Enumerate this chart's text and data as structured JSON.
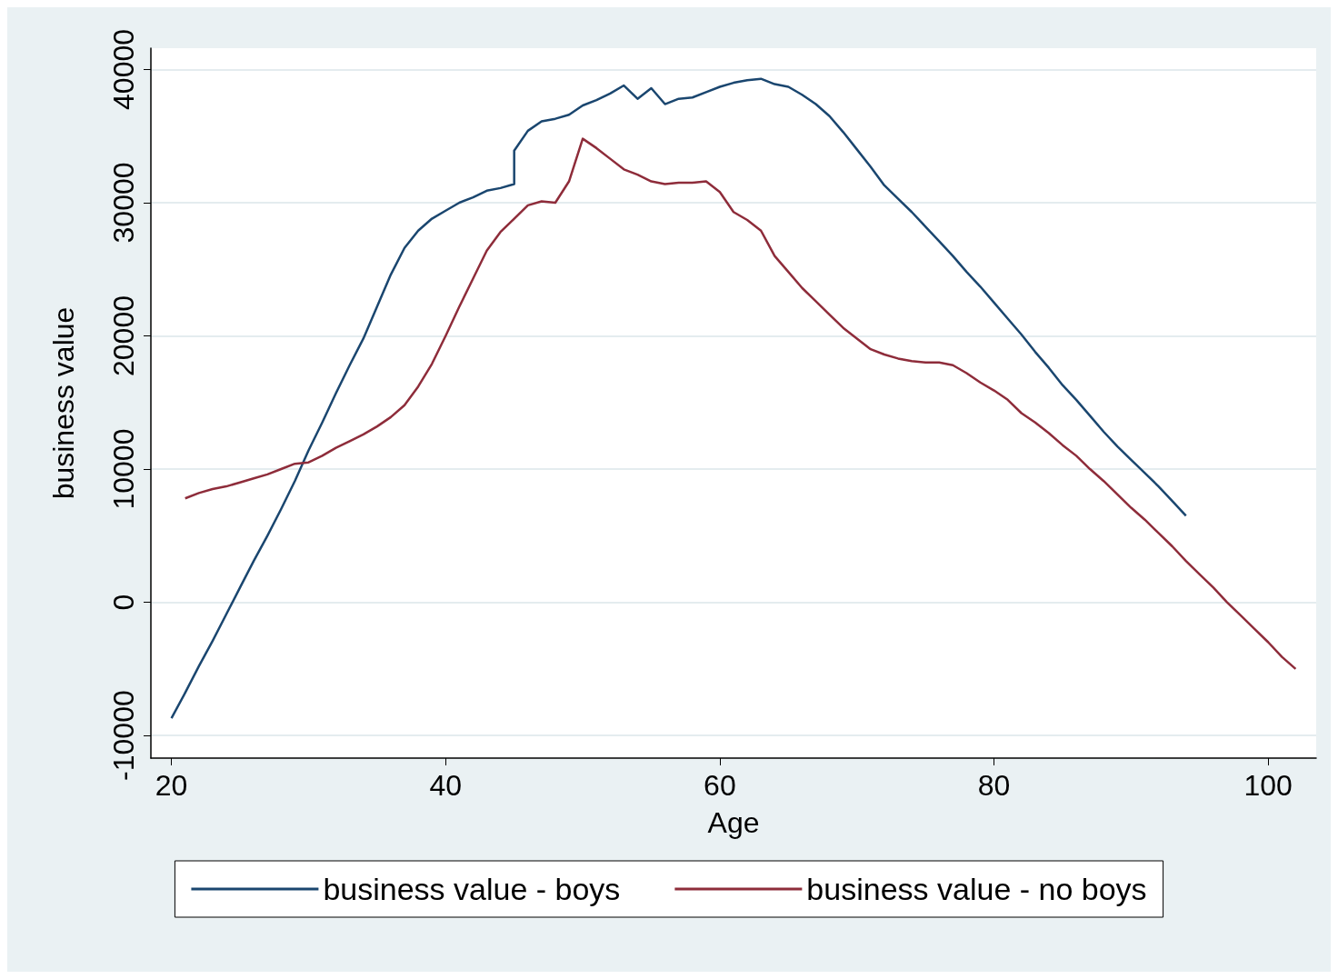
{
  "chart_data": {
    "type": "line",
    "xlabel": "Age",
    "ylabel": "business value",
    "xlim": [
      18.5,
      103.5
    ],
    "xticks": [
      20,
      40,
      60,
      80,
      100
    ],
    "ylim": [
      -11700,
      41600
    ],
    "yticks": [
      -10000,
      0,
      10000,
      20000,
      30000,
      40000
    ],
    "grid": "y",
    "legend": "bottom",
    "series": [
      {
        "name": "business value - boys",
        "color": "#1a466f",
        "x": [
          20,
          21,
          22,
          23,
          24,
          25,
          26,
          27,
          28,
          29,
          30,
          31,
          32,
          33,
          34,
          35,
          36,
          37,
          38,
          39,
          40,
          41,
          42,
          43,
          44,
          45,
          45,
          46,
          47,
          48,
          49,
          50,
          51,
          52,
          53,
          54,
          55,
          56,
          57,
          58,
          59,
          60,
          61,
          62,
          63,
          64,
          65,
          66,
          67,
          68,
          69,
          70,
          71,
          72,
          73,
          74,
          75,
          76,
          77,
          78,
          79,
          80,
          81,
          82,
          83,
          84,
          85,
          86,
          87,
          88,
          89,
          90,
          91,
          92,
          93,
          94
        ],
        "values": [
          -8700,
          -6800,
          -4800,
          -2900,
          -900,
          1100,
          3100,
          5000,
          7000,
          9100,
          11400,
          13500,
          15700,
          17800,
          19800,
          22200,
          24600,
          26600,
          27900,
          28800,
          29400,
          30000,
          30400,
          30900,
          31100,
          31400,
          33900,
          35400,
          36100,
          36300,
          36600,
          37300,
          37700,
          38200,
          38800,
          37800,
          38600,
          37400,
          37800,
          37900,
          38300,
          38700,
          39000,
          39200,
          39300,
          38900,
          38700,
          38100,
          37400,
          36500,
          35300,
          34000,
          32700,
          31300,
          30300,
          29300,
          28200,
          27100,
          26000,
          24800,
          23700,
          22500,
          21300,
          20100,
          18800,
          17600,
          16300,
          15200,
          14000,
          12800,
          11700,
          10700,
          9700,
          8700,
          7600,
          6500
        ]
      },
      {
        "name": "business value - no boys",
        "color": "#8e2c3a",
        "x": [
          21,
          22,
          23,
          24,
          25,
          26,
          27,
          28,
          29,
          30,
          31,
          32,
          33,
          34,
          35,
          36,
          37,
          38,
          39,
          40,
          41,
          42,
          43,
          44,
          45,
          46,
          47,
          48,
          49,
          50,
          51,
          52,
          53,
          54,
          55,
          56,
          57,
          58,
          59,
          60,
          61,
          62,
          63,
          64,
          65,
          66,
          67,
          68,
          69,
          70,
          71,
          72,
          73,
          74,
          75,
          76,
          77,
          78,
          79,
          80,
          81,
          82,
          83,
          84,
          85,
          86,
          87,
          88,
          89,
          90,
          91,
          92,
          93,
          94,
          95,
          96,
          97,
          98,
          99,
          100,
          101,
          102
        ],
        "values": [
          7800,
          8200,
          8500,
          8700,
          9000,
          9300,
          9600,
          10000,
          10400,
          10500,
          11000,
          11600,
          12100,
          12600,
          13200,
          13900,
          14800,
          16200,
          17900,
          20000,
          22200,
          24300,
          26400,
          27800,
          28800,
          29800,
          30100,
          30000,
          31600,
          34800,
          34100,
          33300,
          32500,
          32100,
          31600,
          31400,
          31500,
          31500,
          31600,
          30800,
          29300,
          28700,
          27900,
          26000,
          24800,
          23600,
          22600,
          21600,
          20600,
          19800,
          19000,
          18600,
          18300,
          18100,
          18000,
          18000,
          17800,
          17200,
          16500,
          15900,
          15200,
          14200,
          13500,
          12700,
          11800,
          11000,
          10000,
          9100,
          8100,
          7100,
          6200,
          5200,
          4200,
          3100,
          2100,
          1100,
          0,
          -1000,
          -2000,
          -3000,
          -4100,
          -5000
        ]
      }
    ]
  }
}
